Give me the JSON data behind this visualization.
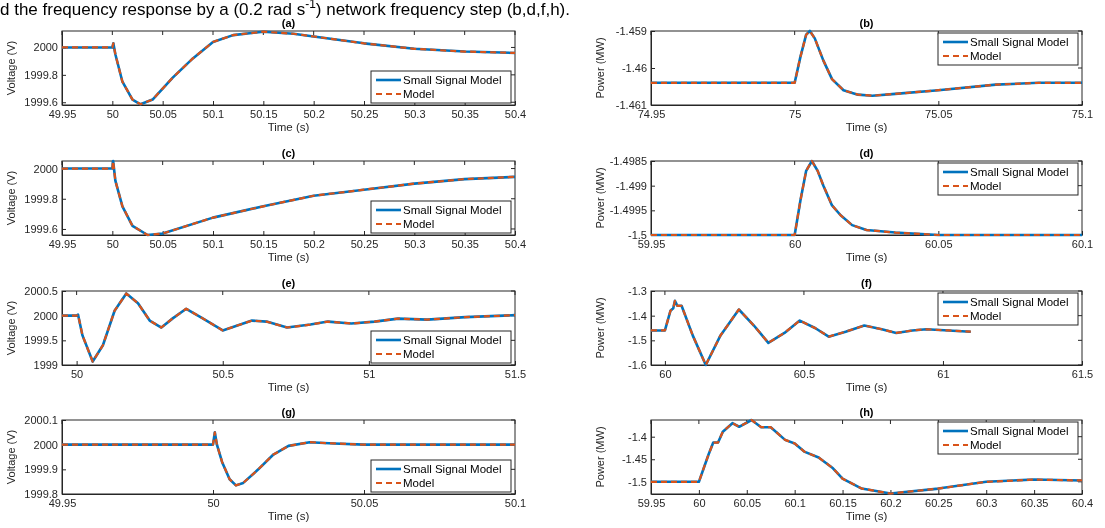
{
  "chart_data": [
    {
      "type": "line",
      "title": "(a)",
      "xlabel": "Time (s)",
      "ylabel": "Voltage (V)",
      "annotations": [
        "d the frequency response by a (0.2 rad s$^{-1}$) network frequency step (b,d,f,h)."
      ],
      "xlim": [
        49.95,
        50.4
      ],
      "xticks": [
        49.95,
        50,
        50.05,
        50.1,
        50.15,
        50.2,
        50.25,
        50.3,
        50.35,
        50.4
      ],
      "ylim": [
        1999.58,
        2000.12
      ],
      "yticks": [
        1999.6,
        1999.8,
        2000
      ],
      "legend": "bottom right",
      "grid": false,
      "x": [
        49.95,
        50,
        50.001,
        50.003,
        50.01,
        50.02,
        50.028,
        50.04,
        50.06,
        50.08,
        50.1,
        50.12,
        50.15,
        50.18,
        50.2,
        50.25,
        50.3,
        50.35,
        50.4
      ],
      "series": [
        {
          "name": "Small Signal Model",
          "color": "#0072bd",
          "line_style": "solid",
          "values": [
            2000,
            2000,
            2000.03,
            1999.95,
            1999.75,
            1999.62,
            1999.585,
            1999.62,
            1999.78,
            1999.92,
            2000.04,
            2000.09,
            2000.115,
            2000.1,
            2000.08,
            2000.03,
            1999.99,
            1999.97,
            1999.96
          ]
        },
        {
          "name": "Model",
          "color": "#d95319",
          "line_style": "dashed",
          "values": [
            2000,
            2000,
            2000.03,
            1999.95,
            1999.75,
            1999.62,
            1999.585,
            1999.62,
            1999.78,
            1999.92,
            2000.04,
            2000.09,
            2000.115,
            2000.1,
            2000.08,
            2000.03,
            1999.99,
            1999.97,
            1999.96
          ]
        }
      ]
    },
    {
      "type": "line",
      "title": "(b)",
      "xlabel": "Time (s)",
      "ylabel": "Power (MW)",
      "xlim": [
        74.95,
        75.1
      ],
      "xticks": [
        74.95,
        75,
        75.05,
        75.1
      ],
      "ylim": [
        -1.461,
        -1.459
      ],
      "yticks": [
        -1.461,
        -1.46,
        -1.459
      ],
      "legend": "top right",
      "grid": false,
      "x": [
        74.95,
        75,
        75.002,
        75.004,
        75.0053,
        75.007,
        75.01,
        75.013,
        75.017,
        75.022,
        75.027,
        75.035,
        75.05,
        75.07,
        75.085,
        75.1
      ],
      "series": [
        {
          "name": "Small Signal Model",
          "color": "#0072bd",
          "line_style": "solid",
          "values": [
            -1.4604,
            -1.4604,
            -1.4597,
            -1.4591,
            -1.459,
            -1.4592,
            -1.4598,
            -1.4603,
            -1.4606,
            -1.46072,
            -1.46075,
            -1.4607,
            -1.4606,
            -1.46045,
            -1.4604,
            -1.4604
          ]
        },
        {
          "name": "Model",
          "color": "#d95319",
          "line_style": "dashed",
          "values": [
            -1.4604,
            -1.4604,
            -1.4597,
            -1.4591,
            -1.459,
            -1.4592,
            -1.4598,
            -1.4603,
            -1.4606,
            -1.46072,
            -1.46075,
            -1.4607,
            -1.4606,
            -1.46045,
            -1.4604,
            -1.4604
          ]
        }
      ]
    },
    {
      "type": "line",
      "title": "(c)",
      "xlabel": "Time (s)",
      "ylabel": "Voltage (V)",
      "xlim": [
        49.95,
        50.4
      ],
      "xticks": [
        49.95,
        50,
        50.05,
        50.1,
        50.15,
        50.2,
        50.25,
        50.3,
        50.35,
        50.4
      ],
      "ylim": [
        1999.56,
        2000.05
      ],
      "yticks": [
        1999.6,
        1999.8,
        2000
      ],
      "legend": "bottom right",
      "grid": false,
      "x": [
        49.95,
        50,
        50.0008,
        50.003,
        50.01,
        50.02,
        50.035,
        50.05,
        50.1,
        50.15,
        50.2,
        50.25,
        50.3,
        50.35,
        50.4
      ],
      "series": [
        {
          "name": "Small Signal Model",
          "color": "#0072bd",
          "line_style": "solid",
          "values": [
            2000,
            2000,
            2000.05,
            1999.92,
            1999.75,
            1999.62,
            1999.56,
            1999.57,
            1999.675,
            1999.75,
            1999.82,
            1999.86,
            1999.9,
            1999.93,
            1999.945
          ]
        },
        {
          "name": "Model",
          "color": "#d95319",
          "line_style": "dashed",
          "values": [
            2000,
            2000,
            2000.05,
            1999.92,
            1999.75,
            1999.62,
            1999.56,
            1999.57,
            1999.675,
            1999.75,
            1999.82,
            1999.86,
            1999.9,
            1999.93,
            1999.945
          ]
        }
      ]
    },
    {
      "type": "line",
      "title": "(d)",
      "xlabel": "Time (s)",
      "ylabel": "Power (MW)",
      "xlim": [
        59.95,
        60.1
      ],
      "xticks": [
        59.95,
        60,
        60.05,
        60.1
      ],
      "ylim": [
        -1.5,
        -1.4985
      ],
      "yticks": [
        -1.5,
        -1.4995,
        -1.499,
        -1.4985
      ],
      "legend": "top right",
      "grid": false,
      "x": [
        59.95,
        60,
        60.002,
        60.004,
        60.006,
        60.008,
        60.01,
        60.013,
        60.016,
        60.02,
        60.025,
        60.035,
        60.05,
        60.1
      ],
      "series": [
        {
          "name": "Small Signal Model",
          "color": "#0072bd",
          "line_style": "solid",
          "values": [
            -1.5,
            -1.5,
            -1.4993,
            -1.4987,
            -1.4985,
            -1.4987,
            -1.499,
            -1.4994,
            -1.4996,
            -1.4998,
            -1.4999,
            -1.49995,
            -1.5,
            -1.5
          ]
        },
        {
          "name": "Model",
          "color": "#d95319",
          "line_style": "dashed",
          "values": [
            -1.5,
            -1.5,
            -1.4993,
            -1.4987,
            -1.4985,
            -1.4987,
            -1.499,
            -1.4994,
            -1.4996,
            -1.4998,
            -1.4999,
            -1.49995,
            -1.5,
            -1.5
          ]
        }
      ]
    },
    {
      "type": "line",
      "title": "(e)",
      "xlabel": "Time (s)",
      "ylabel": "Voltage (V)",
      "xlim": [
        49.95,
        51.5
      ],
      "xticks": [
        50,
        50.5,
        51,
        51.5
      ],
      "ylim": [
        1999,
        2000.5
      ],
      "yticks": [
        1999,
        1999.5,
        2000,
        2000.5
      ],
      "legend": "bottom right",
      "grid": false,
      "x": [
        49.95,
        50,
        50.005,
        50.02,
        50.055,
        50.09,
        50.13,
        50.17,
        50.21,
        50.25,
        50.29,
        50.33,
        50.375,
        50.43,
        50.5,
        50.55,
        50.6,
        50.65,
        50.72,
        50.8,
        50.86,
        50.94,
        51.02,
        51.1,
        51.2,
        51.33,
        51.5
      ],
      "series": [
        {
          "name": "Small Signal Model",
          "color": "#0072bd",
          "line_style": "solid",
          "values": [
            2000,
            2000,
            2000.02,
            1999.6,
            1999.07,
            1999.4,
            2000.1,
            2000.45,
            2000.25,
            1999.9,
            1999.76,
            1999.95,
            2000.14,
            1999.95,
            1999.7,
            1999.8,
            1999.9,
            1999.88,
            1999.76,
            1999.82,
            1999.88,
            1999.84,
            1999.88,
            1999.94,
            1999.92,
            1999.97,
            2000.01
          ]
        },
        {
          "name": "Model",
          "color": "#d95319",
          "line_style": "dashed",
          "values": [
            2000,
            2000,
            2000.02,
            1999.6,
            1999.07,
            1999.4,
            2000.1,
            2000.45,
            2000.25,
            1999.9,
            1999.76,
            1999.95,
            2000.14,
            1999.95,
            1999.7,
            1999.8,
            1999.9,
            1999.88,
            1999.76,
            1999.82,
            1999.88,
            1999.84,
            1999.88,
            1999.94,
            1999.92,
            1999.97,
            2000.01
          ]
        }
      ]
    },
    {
      "type": "line",
      "title": "(f)",
      "xlabel": "Time (s)",
      "ylabel": "Power (MW)",
      "xlim": [
        59.95,
        61.5
      ],
      "xticks": [
        60,
        60.5,
        61,
        61.5
      ],
      "ylim": [
        -1.6,
        -1.3
      ],
      "yticks": [
        -1.6,
        -1.5,
        -1.4,
        -1.3
      ],
      "legend": "top right",
      "grid": false,
      "x": [
        59.95,
        60,
        60.01,
        60.02,
        60.03,
        60.036,
        60.045,
        60.06,
        60.1,
        60.147,
        60.2,
        60.266,
        60.32,
        60.372,
        60.43,
        60.485,
        60.54,
        60.589,
        60.65,
        60.717,
        60.78,
        60.832,
        60.89,
        60.94,
        61.02,
        61.1
      ],
      "series": [
        {
          "name": "Small Signal Model",
          "color": "#0072bd",
          "line_style": "solid",
          "values": [
            -1.46,
            -1.46,
            -1.42,
            -1.38,
            -1.37,
            -1.34,
            -1.36,
            -1.36,
            -1.48,
            -1.6,
            -1.48,
            -1.375,
            -1.44,
            -1.51,
            -1.47,
            -1.42,
            -1.45,
            -1.485,
            -1.465,
            -1.44,
            -1.455,
            -1.47,
            -1.46,
            -1.455,
            -1.46,
            -1.465
          ]
        },
        {
          "name": "Model",
          "color": "#d95319",
          "line_style": "dashed",
          "values": [
            -1.46,
            -1.46,
            -1.42,
            -1.38,
            -1.37,
            -1.34,
            -1.36,
            -1.36,
            -1.48,
            -1.6,
            -1.48,
            -1.375,
            -1.44,
            -1.51,
            -1.47,
            -1.42,
            -1.45,
            -1.485,
            -1.465,
            -1.44,
            -1.455,
            -1.47,
            -1.46,
            -1.455,
            -1.46,
            -1.465
          ]
        }
      ]
    },
    {
      "type": "line",
      "title": "(g)",
      "xlabel": "Time (s)",
      "ylabel": "Voltage (V)",
      "xlim": [
        49.95,
        50.1
      ],
      "xticks": [
        49.95,
        50,
        50.05,
        50.1
      ],
      "ylim": [
        1999.8,
        2000.1
      ],
      "yticks": [
        1999.8,
        1999.9,
        2000,
        2000.1
      ],
      "legend": "bottom right",
      "grid": false,
      "x": [
        49.95,
        50,
        50.0006,
        50.0013,
        50.003,
        50.0055,
        50.0076,
        50.01,
        50.015,
        50.02,
        50.025,
        50.032,
        50.04,
        50.05,
        50.1
      ],
      "series": [
        {
          "name": "Small Signal Model",
          "color": "#0072bd",
          "line_style": "solid",
          "values": [
            2000,
            2000,
            2000.05,
            2000,
            1999.93,
            1999.86,
            1999.835,
            1999.845,
            1999.9,
            1999.96,
            1999.995,
            2000.01,
            2000.005,
            2000,
            2000
          ]
        },
        {
          "name": "Model",
          "color": "#d95319",
          "line_style": "dashed",
          "values": [
            2000,
            2000,
            2000.05,
            2000,
            1999.93,
            1999.86,
            1999.835,
            1999.845,
            1999.9,
            1999.96,
            1999.995,
            2000.01,
            2000.005,
            2000,
            2000
          ]
        }
      ]
    },
    {
      "type": "line",
      "title": "(h)",
      "xlabel": "Time (s)",
      "ylabel": "Power (MW)",
      "xlim": [
        59.95,
        60.4
      ],
      "xticks": [
        59.95,
        60,
        60.05,
        60.1,
        60.15,
        60.2,
        60.25,
        60.3,
        60.35,
        60.4
      ],
      "ylim": [
        -1.527,
        -1.363
      ],
      "yticks": [
        -1.5,
        -1.45,
        -1.4
      ],
      "legend": "top right",
      "grid": false,
      "x": [
        59.95,
        60,
        60.01,
        60.015,
        60.02,
        60.025,
        60.035,
        60.042,
        60.055,
        60.065,
        60.075,
        60.09,
        60.1,
        60.11,
        60.125,
        60.14,
        60.15,
        60.17,
        60.2,
        60.25,
        60.3,
        60.35,
        60.4
      ],
      "series": [
        {
          "name": "Small Signal Model",
          "color": "#0072bd",
          "line_style": "solid",
          "values": [
            -1.5,
            -1.5,
            -1.44,
            -1.413,
            -1.413,
            -1.389,
            -1.37,
            -1.378,
            -1.363,
            -1.379,
            -1.379,
            -1.407,
            -1.415,
            -1.433,
            -1.446,
            -1.47,
            -1.493,
            -1.515,
            -1.526,
            -1.515,
            -1.5,
            -1.495,
            -1.497
          ]
        },
        {
          "name": "Model",
          "color": "#d95319",
          "line_style": "dashed",
          "values": [
            -1.5,
            -1.5,
            -1.44,
            -1.413,
            -1.413,
            -1.389,
            -1.37,
            -1.378,
            -1.363,
            -1.379,
            -1.379,
            -1.407,
            -1.415,
            -1.433,
            -1.446,
            -1.47,
            -1.493,
            -1.515,
            -1.526,
            -1.515,
            -1.5,
            -1.495,
            -1.497
          ]
        }
      ]
    }
  ]
}
